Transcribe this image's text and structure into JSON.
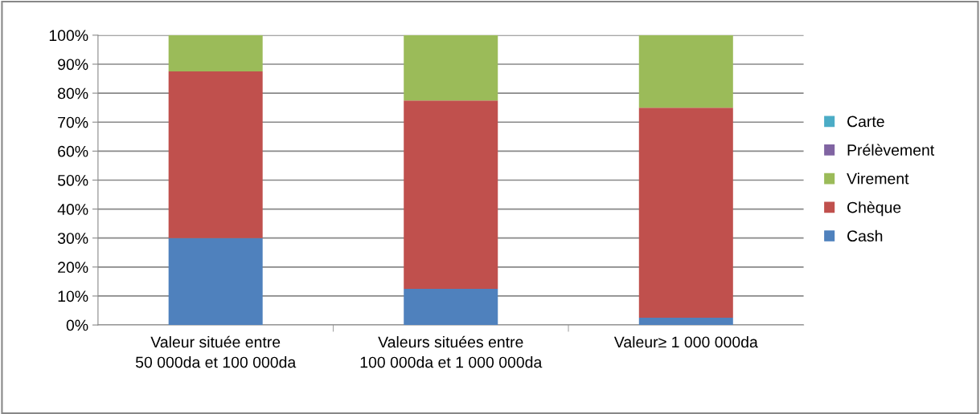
{
  "chart_data": {
    "type": "bar",
    "stacked": true,
    "categories": [
      "Valeur située entre\n50 000da et 100 000da",
      "Valeurs situées entre\n100 000da et 1 000 000da",
      "Valeur≥ 1 000 000da"
    ],
    "series": [
      {
        "name": "Cash",
        "color": "#4f81bd",
        "values": [
          30,
          12.5,
          2.5
        ]
      },
      {
        "name": "Chèque",
        "color": "#c0504d",
        "values": [
          57.5,
          65,
          72.5
        ]
      },
      {
        "name": "Virement",
        "color": "#9bbb59",
        "values": [
          12.5,
          22.5,
          25
        ]
      },
      {
        "name": "Prélèvement",
        "color": "#8064a2",
        "values": [
          0,
          0,
          0
        ]
      },
      {
        "name": "Carte",
        "color": "#4bacc6",
        "values": [
          0,
          0,
          0
        ]
      }
    ],
    "ylim": [
      0,
      100
    ],
    "yticks": [
      {
        "value": 0,
        "label": "0%"
      },
      {
        "value": 10,
        "label": "10%"
      },
      {
        "value": 20,
        "label": "20%"
      },
      {
        "value": 30,
        "label": "30%"
      },
      {
        "value": 40,
        "label": "40%"
      },
      {
        "value": 50,
        "label": "50%"
      },
      {
        "value": 60,
        "label": "60%"
      },
      {
        "value": 70,
        "label": "70%"
      },
      {
        "value": 80,
        "label": "80%"
      },
      {
        "value": 90,
        "label": "90%"
      },
      {
        "value": 100,
        "label": "100%"
      }
    ],
    "grid": "y",
    "legend": "right"
  }
}
